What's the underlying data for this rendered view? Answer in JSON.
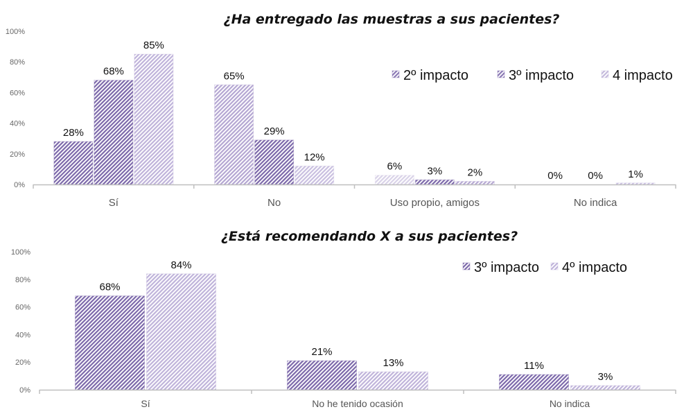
{
  "chart_data": [
    {
      "type": "bar",
      "title": "¿Ha entregado las muestras a sus pacientes?",
      "xlabel": "",
      "ylabel": "",
      "ylim": [
        0,
        100
      ],
      "yticks": [
        "0%",
        "20%",
        "40%",
        "60%",
        "80%",
        "100%"
      ],
      "categories": [
        "Sí",
        "No",
        "Uso propio, amigos",
        "No indica"
      ],
      "legend_position": "right",
      "series": [
        {
          "name": "2º impacto",
          "color": "#8a78b4",
          "values": [
            28,
            65,
            6,
            0
          ],
          "labels": [
            "28%",
            "65%",
            "6%",
            "0%"
          ]
        },
        {
          "name": "3º impacto",
          "color": "#8a78b4",
          "values": [
            68,
            29,
            3,
            0
          ],
          "labels": [
            "68%",
            "29%",
            "3%",
            "0%"
          ]
        },
        {
          "name": "4 impacto",
          "color": "#c4b9dc",
          "values": [
            85,
            12,
            2,
            1
          ],
          "labels": [
            "85%",
            "12%",
            "2%",
            "1%"
          ]
        }
      ],
      "bar_shades": [
        [
          "#7c68aa",
          "#b4a6d2",
          "#d9d2e8",
          "#7c68aa"
        ],
        [
          "#7c68aa",
          "#7c68aa",
          "#7c68aa",
          "#7c68aa"
        ],
        [
          "#bfb3da",
          "#c9bfe0",
          "#b4a6d2",
          "#c9bfe0"
        ]
      ]
    },
    {
      "type": "bar",
      "title": "¿Está recomendando X a sus pacientes?",
      "xlabel": "",
      "ylabel": "",
      "ylim": [
        0,
        100
      ],
      "yticks": [
        "0%",
        "20%",
        "40%",
        "60%",
        "80%",
        "100%"
      ],
      "categories": [
        "Sí",
        "No he tenido ocasión",
        "No indica"
      ],
      "legend_position": "right",
      "series": [
        {
          "name": "3º impacto",
          "color": "#7c68aa",
          "values": [
            68,
            21,
            11
          ],
          "labels": [
            "68%",
            "21%",
            "11%"
          ]
        },
        {
          "name": "4º impacto",
          "color": "#bfb3da",
          "values": [
            84,
            13,
            3
          ],
          "labels": [
            "84%",
            "13%",
            "3%"
          ]
        }
      ],
      "bar_shades": [
        [
          "#7c68aa",
          "#7c68aa",
          "#7c68aa"
        ],
        [
          "#bfb3da",
          "#bfb3da",
          "#bfb3da"
        ]
      ]
    }
  ]
}
